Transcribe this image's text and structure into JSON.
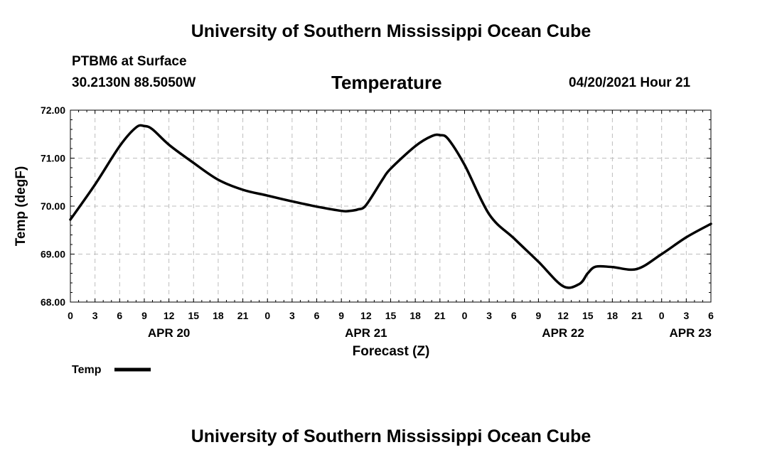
{
  "header": {
    "top_title": "University of Southern Mississippi Ocean Cube",
    "station": "PTBM6 at Surface",
    "coords": "30.2130N  88.5050W",
    "datetime": "04/20/2021 Hour 21",
    "bottom_title": "University of Southern Mississippi Ocean Cube"
  },
  "chart_data": {
    "type": "line",
    "title": "Temperature",
    "xlabel": "Forecast (Z)",
    "ylabel": "Temp (degF)",
    "ylim": [
      68.0,
      72.0
    ],
    "y_ticks": [
      68.0,
      69.0,
      70.0,
      71.0,
      72.0
    ],
    "y_tick_labels": [
      "68.00",
      "69.00",
      "70.00",
      "71.00",
      "72.00"
    ],
    "xlim": [
      0,
      78
    ],
    "x_ticks_hours": [
      0,
      3,
      6,
      9,
      12,
      15,
      18,
      21,
      24,
      27,
      30,
      33,
      36,
      39,
      42,
      45,
      48,
      51,
      54,
      57,
      60,
      63,
      66,
      69,
      72,
      75,
      78
    ],
    "x_tick_labels": [
      "0",
      "3",
      "6",
      "9",
      "12",
      "15",
      "18",
      "21",
      "0",
      "3",
      "6",
      "9",
      "12",
      "15",
      "18",
      "21",
      "0",
      "3",
      "6",
      "9",
      "12",
      "15",
      "18",
      "21",
      "0",
      "3",
      "6"
    ],
    "date_labels": [
      {
        "label": "APR 20",
        "hour": 12
      },
      {
        "label": "APR 21",
        "hour": 36
      },
      {
        "label": "APR 22",
        "hour": 60
      },
      {
        "label": "APR 23",
        "hour": 78
      }
    ],
    "grid": true,
    "legend_position": "bottom-left",
    "series": [
      {
        "name": "Temp",
        "color": "#000000",
        "x": [
          0,
          3,
          6,
          8,
          9,
          10,
          12,
          15,
          18,
          21,
          24,
          27,
          30,
          33,
          34,
          35,
          36,
          38,
          39,
          42,
          44,
          45,
          46,
          48,
          51,
          54,
          57,
          60,
          62,
          63,
          64,
          66,
          69,
          72,
          75,
          78
        ],
        "y": [
          69.72,
          70.45,
          71.25,
          71.64,
          71.67,
          71.6,
          71.28,
          70.9,
          70.55,
          70.34,
          70.22,
          70.1,
          69.99,
          69.9,
          69.9,
          69.93,
          70.02,
          70.55,
          70.78,
          71.25,
          71.46,
          71.48,
          71.4,
          70.86,
          69.83,
          69.33,
          68.84,
          68.33,
          68.38,
          68.6,
          68.74,
          68.73,
          68.69,
          69.0,
          69.35,
          69.63
        ]
      }
    ]
  }
}
